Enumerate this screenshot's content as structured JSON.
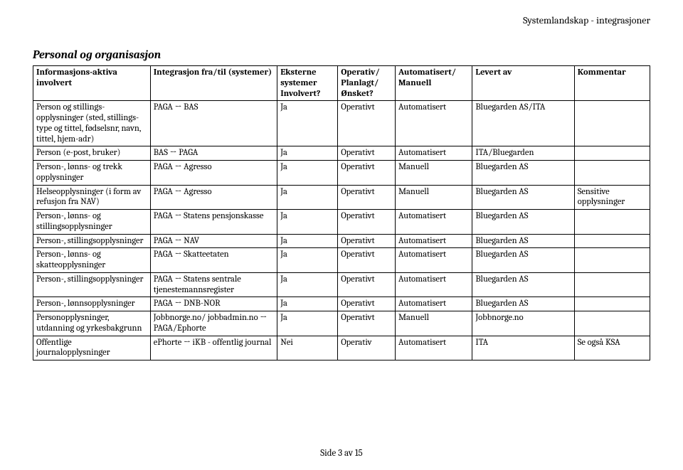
{
  "header": {
    "doc_title": "Systemlandskap - integrasjoner"
  },
  "section": {
    "title": "Personal og organisasjon"
  },
  "table": {
    "headers": {
      "col1": "Informasjons-aktiva involvert",
      "col2": "Integrasjon fra/til (systemer)",
      "col3": "Eksterne systemer Involvert?",
      "col4": "Operativ/ Planlagt/ Ønsket?",
      "col5": "Automatisert/ Manuell",
      "col6": "Levert av",
      "col7": "Kommentar"
    },
    "rows": [
      {
        "c1": "Person og stillings-opplysninger (sted, stillings-type og tittel, fødselsnr, navn, tittel, hjem-adr)",
        "c2": "PAGA → BAS",
        "c3": "Ja",
        "c4": "Operativt",
        "c5": "Automatisert",
        "c6": "Bluegarden AS/ITA",
        "c7": ""
      },
      {
        "c1": "Person (e-post, bruker)",
        "c2": "BAS → PAGA",
        "c3": "Ja",
        "c4": "Operativt",
        "c5": "Automatisert",
        "c6": "ITA/Bluegarden",
        "c7": ""
      },
      {
        "c1": "Person-, lønns- og trekk opplysninger",
        "c2": "PAGA → Agresso",
        "c3": "Ja",
        "c4": "Operativt",
        "c5": "Manuell",
        "c6": "Bluegarden AS",
        "c7": ""
      },
      {
        "c1": "Helseopplysninger (i form av refusjon fra NAV)",
        "c2": "PAGA → Agresso",
        "c3": "Ja",
        "c4": "Operativt",
        "c5": "Manuell",
        "c6": "Bluegarden AS",
        "c7": "Sensitive opplysninger"
      },
      {
        "c1": "Person-, lønns- og stillingsopplysninger",
        "c2": "PAGA → Statens pensjonskasse",
        "c3": "Ja",
        "c4": "Operativt",
        "c5": "Automatisert",
        "c6": "Bluegarden AS",
        "c7": ""
      },
      {
        "c1": "Person-, stillingsopplysninger",
        "c2": "PAGA → NAV",
        "c3": "Ja",
        "c4": "Operativt",
        "c5": "Automatisert",
        "c6": "Bluegarden AS",
        "c7": ""
      },
      {
        "c1": "Person-, lønns- og skatteopplysninger",
        "c2": "PAGA → Skatteetaten",
        "c3": "Ja",
        "c4": "Operativt",
        "c5": "Automatisert",
        "c6": "Bluegarden AS",
        "c7": ""
      },
      {
        "c1": "Person-, stillingsopplysninger",
        "c2": "PAGA → Statens sentrale tjenestemannsregister",
        "c3": "Ja",
        "c4": "Operativt",
        "c5": "Automatisert",
        "c6": "Bluegarden AS",
        "c7": ""
      },
      {
        "c1": "Person-, lønnsopplysninger",
        "c2": "PAGA → DNB-NOR",
        "c3": "Ja",
        "c4": "Operativt",
        "c5": "Automatisert",
        "c6": "Bluegarden AS",
        "c7": ""
      },
      {
        "c1": "Personopplysninger, utdanning og yrkesbakgrunn",
        "c2": "Jobbnorge.no/ jobbadmin.no → PAGA/Ephorte",
        "c3": "Ja",
        "c4": "Operativt",
        "c5": "Manuell",
        "c6": "Jobbnorge.no",
        "c7": ""
      },
      {
        "c1": "Offentlige journalopplysninger",
        "c2": "ePhorte → iKB - offentlig journal",
        "c3": "Nei",
        "c4": "Operativ",
        "c5": "Automatisert",
        "c6": "ITA",
        "c7": "Se også KSA"
      }
    ]
  },
  "footer": {
    "text": "Side 3 av 15"
  }
}
